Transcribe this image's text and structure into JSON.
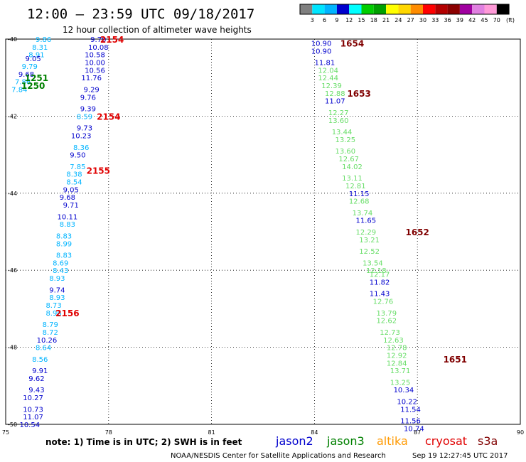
{
  "header": {
    "title": "12:00 – 23:59 UTC 09/18/2017",
    "subtitle": "12 hour collection of altimeter wave heights"
  },
  "colorbar": {
    "colors": [
      "#808080",
      "#00e5ff",
      "#00b4ff",
      "#0000cd",
      "#00ffff",
      "#00cd00",
      "#00a000",
      "#ffff00",
      "#ffd700",
      "#ff8c00",
      "#ff0000",
      "#b40000",
      "#8b0000",
      "#a000a0",
      "#e080e0",
      "#ff9ad8",
      "#000000"
    ],
    "labels": [
      "3",
      "6",
      "9",
      "12",
      "15",
      "18",
      "21",
      "24",
      "27",
      "30",
      "33",
      "36",
      "39",
      "42",
      "45",
      "70"
    ],
    "unit": "(ft)"
  },
  "footer": {
    "note": "note:  1) Time is in UTC;  2) SWH is in feet",
    "credit": "NOAA/NESDIS Center for Satellite Applications and Research",
    "timestamp": "Sep 19 12:27:45 UTC 2017"
  },
  "legend": [
    {
      "name": "jason2",
      "color": "#0000cd"
    },
    {
      "name": "jason3",
      "color": "#008000"
    },
    {
      "name": "altika",
      "color": "#ff9900"
    },
    {
      "name": "cryosat",
      "color": "#e00000"
    },
    {
      "name": "s3a",
      "color": "#800000"
    }
  ],
  "chart_data": {
    "type": "scatter",
    "xlim": [
      75,
      90
    ],
    "ylim": [
      -50,
      -40
    ],
    "xticks": [
      75,
      78,
      81,
      84,
      87,
      90
    ],
    "yticks": [
      -40,
      -42,
      -44,
      -46,
      -48,
      -50
    ],
    "grid": true,
    "colors": {
      "jason2": "#0000cd",
      "jason3": "#008000",
      "cryosat": "#e00000",
      "s3a": "#800000",
      "c12": "#0000cd",
      "c9": "#00b4ff",
      "c6": "#00e5ff",
      "c15": "#66dd66"
    },
    "time_labels": [
      {
        "text": "2154",
        "x": 78.1,
        "y": -40.0,
        "sat": "cryosat"
      },
      {
        "text": "2154",
        "x": 78.0,
        "y": -42.0,
        "sat": "cryosat"
      },
      {
        "text": "2155",
        "x": 77.7,
        "y": -43.4,
        "sat": "cryosat"
      },
      {
        "text": "2156",
        "x": 76.8,
        "y": -47.1,
        "sat": "cryosat"
      },
      {
        "text": "1251",
        "x": 75.9,
        "y": -41.0,
        "sat": "jason3"
      },
      {
        "text": "1250",
        "x": 75.8,
        "y": -41.2,
        "sat": "jason3"
      },
      {
        "text": "1654",
        "x": 85.1,
        "y": -40.1,
        "sat": "s3a"
      },
      {
        "text": "1653",
        "x": 85.3,
        "y": -41.4,
        "sat": "s3a"
      },
      {
        "text": "1652",
        "x": 87.0,
        "y": -45.0,
        "sat": "s3a"
      },
      {
        "text": "1651",
        "x": 88.1,
        "y": -48.3,
        "sat": "s3a"
      }
    ],
    "points": [
      {
        "x": 76.1,
        "y": -40.0,
        "v": "9.86",
        "c": "c9"
      },
      {
        "x": 77.7,
        "y": -40.0,
        "v": "9.70",
        "c": "c12"
      },
      {
        "x": 76.0,
        "y": -40.2,
        "v": "8.31",
        "c": "c9"
      },
      {
        "x": 77.7,
        "y": -40.2,
        "v": "10.08",
        "c": "c12"
      },
      {
        "x": 75.9,
        "y": -40.4,
        "v": "8.91",
        "c": "c9"
      },
      {
        "x": 77.6,
        "y": -40.4,
        "v": "10.58",
        "c": "c12"
      },
      {
        "x": 75.8,
        "y": -40.5,
        "v": "9.05",
        "c": "c12"
      },
      {
        "x": 77.6,
        "y": -40.6,
        "v": "10.00",
        "c": "c12"
      },
      {
        "x": 75.7,
        "y": -40.7,
        "v": "9.79",
        "c": "c9"
      },
      {
        "x": 75.6,
        "y": -40.9,
        "v": "9.68",
        "c": "c12"
      },
      {
        "x": 77.6,
        "y": -40.8,
        "v": "10.56",
        "c": "c12"
      },
      {
        "x": 75.5,
        "y": -41.1,
        "v": "7.86",
        "c": "c9"
      },
      {
        "x": 77.5,
        "y": -41.0,
        "v": "11.76",
        "c": "c12"
      },
      {
        "x": 75.4,
        "y": -41.3,
        "v": "7.84",
        "c": "c9"
      },
      {
        "x": 77.5,
        "y": -41.3,
        "v": "9.29",
        "c": "c12"
      },
      {
        "x": 77.4,
        "y": -41.5,
        "v": "9.76",
        "c": "c12"
      },
      {
        "x": 77.4,
        "y": -41.8,
        "v": "9.39",
        "c": "c12"
      },
      {
        "x": 77.3,
        "y": -42.0,
        "v": "8.59",
        "c": "c9"
      },
      {
        "x": 77.3,
        "y": -42.3,
        "v": "9.73",
        "c": "c12"
      },
      {
        "x": 77.2,
        "y": -42.5,
        "v": "10.23",
        "c": "c12"
      },
      {
        "x": 77.2,
        "y": -42.8,
        "v": "8.36",
        "c": "c9"
      },
      {
        "x": 77.1,
        "y": -43.0,
        "v": "9.50",
        "c": "c12"
      },
      {
        "x": 77.1,
        "y": -43.3,
        "v": "7.85",
        "c": "c9"
      },
      {
        "x": 77.0,
        "y": -43.5,
        "v": "8.38",
        "c": "c9"
      },
      {
        "x": 77.0,
        "y": -43.7,
        "v": "8.54",
        "c": "c9"
      },
      {
        "x": 76.9,
        "y": -43.9,
        "v": "9.05",
        "c": "c12"
      },
      {
        "x": 76.8,
        "y": -44.1,
        "v": "9.68",
        "c": "c12"
      },
      {
        "x": 76.9,
        "y": -44.3,
        "v": "9.71",
        "c": "c12"
      },
      {
        "x": 76.8,
        "y": -44.6,
        "v": "10.11",
        "c": "c12"
      },
      {
        "x": 76.8,
        "y": -44.8,
        "v": "8.83",
        "c": "c9"
      },
      {
        "x": 76.7,
        "y": -45.1,
        "v": "8.83",
        "c": "c9"
      },
      {
        "x": 76.7,
        "y": -45.3,
        "v": "8.99",
        "c": "c9"
      },
      {
        "x": 76.7,
        "y": -45.6,
        "v": "8.83",
        "c": "c9"
      },
      {
        "x": 76.6,
        "y": -45.8,
        "v": "8.69",
        "c": "c9"
      },
      {
        "x": 76.6,
        "y": -46.0,
        "v": "8.43",
        "c": "c9"
      },
      {
        "x": 76.5,
        "y": -46.2,
        "v": "8.93",
        "c": "c9"
      },
      {
        "x": 76.5,
        "y": -46.5,
        "v": "9.74",
        "c": "c12"
      },
      {
        "x": 76.5,
        "y": -46.7,
        "v": "8.93",
        "c": "c9"
      },
      {
        "x": 76.4,
        "y": -46.9,
        "v": "8.73",
        "c": "c9"
      },
      {
        "x": 76.4,
        "y": -47.1,
        "v": "8.96",
        "c": "c9"
      },
      {
        "x": 76.3,
        "y": -47.4,
        "v": "8.79",
        "c": "c9"
      },
      {
        "x": 76.3,
        "y": -47.6,
        "v": "8.72",
        "c": "c9"
      },
      {
        "x": 76.2,
        "y": -47.8,
        "v": "10.26",
        "c": "c12"
      },
      {
        "x": 76.1,
        "y": -48.0,
        "v": "8.64",
        "c": "c9"
      },
      {
        "x": 76.0,
        "y": -48.3,
        "v": "8.56",
        "c": "c9"
      },
      {
        "x": 76.0,
        "y": -48.6,
        "v": "9.91",
        "c": "c12"
      },
      {
        "x": 75.9,
        "y": -48.8,
        "v": "9.62",
        "c": "c12"
      },
      {
        "x": 75.9,
        "y": -49.1,
        "v": "9.43",
        "c": "c12"
      },
      {
        "x": 75.8,
        "y": -49.3,
        "v": "10.27",
        "c": "c12"
      },
      {
        "x": 75.8,
        "y": -49.6,
        "v": "10.73",
        "c": "c12"
      },
      {
        "x": 75.8,
        "y": -49.8,
        "v": "11.07",
        "c": "c12"
      },
      {
        "x": 75.7,
        "y": -50.0,
        "v": "10.54",
        "c": "c12"
      },
      {
        "x": 84.2,
        "y": -40.1,
        "v": "10.90",
        "c": "c12"
      },
      {
        "x": 84.2,
        "y": -40.3,
        "v": "10.90",
        "c": "c12"
      },
      {
        "x": 84.3,
        "y": -40.6,
        "v": "11.81",
        "c": "c12"
      },
      {
        "x": 84.4,
        "y": -40.8,
        "v": "12.04",
        "c": "c15"
      },
      {
        "x": 84.4,
        "y": -41.0,
        "v": "12.44",
        "c": "c15"
      },
      {
        "x": 84.5,
        "y": -41.2,
        "v": "12.39",
        "c": "c15"
      },
      {
        "x": 84.6,
        "y": -41.4,
        "v": "12.88",
        "c": "c15"
      },
      {
        "x": 84.6,
        "y": -41.6,
        "v": "11.07",
        "c": "c12"
      },
      {
        "x": 84.7,
        "y": -41.9,
        "v": "12.27",
        "c": "c15"
      },
      {
        "x": 84.7,
        "y": -42.1,
        "v": "13.60",
        "c": "c15"
      },
      {
        "x": 84.8,
        "y": -42.4,
        "v": "13.44",
        "c": "c15"
      },
      {
        "x": 84.9,
        "y": -42.6,
        "v": "13.25",
        "c": "c15"
      },
      {
        "x": 84.9,
        "y": -42.9,
        "v": "13.60",
        "c": "c15"
      },
      {
        "x": 85.0,
        "y": -43.1,
        "v": "12.67",
        "c": "c15"
      },
      {
        "x": 85.1,
        "y": -43.3,
        "v": "14.02",
        "c": "c15"
      },
      {
        "x": 85.1,
        "y": -43.6,
        "v": "13.11",
        "c": "c15"
      },
      {
        "x": 85.2,
        "y": -43.8,
        "v": "12.81",
        "c": "c15"
      },
      {
        "x": 85.3,
        "y": -44.0,
        "v": "11.15",
        "c": "c12"
      },
      {
        "x": 85.3,
        "y": -44.2,
        "v": "12.68",
        "c": "c15"
      },
      {
        "x": 85.4,
        "y": -44.5,
        "v": "13.74",
        "c": "c15"
      },
      {
        "x": 85.5,
        "y": -44.7,
        "v": "11.65",
        "c": "c12"
      },
      {
        "x": 85.5,
        "y": -45.0,
        "v": "12.29",
        "c": "c15"
      },
      {
        "x": 85.6,
        "y": -45.2,
        "v": "13.21",
        "c": "c15"
      },
      {
        "x": 85.6,
        "y": -45.5,
        "v": "12.52",
        "c": "c15"
      },
      {
        "x": 85.7,
        "y": -45.8,
        "v": "13.54",
        "c": "c15"
      },
      {
        "x": 85.8,
        "y": -46.0,
        "v": "12.18",
        "c": "c15"
      },
      {
        "x": 85.9,
        "y": -46.1,
        "v": "12.17",
        "c": "c15"
      },
      {
        "x": 85.9,
        "y": -46.3,
        "v": "11.82",
        "c": "c12"
      },
      {
        "x": 85.9,
        "y": -46.6,
        "v": "11.43",
        "c": "c12"
      },
      {
        "x": 86.0,
        "y": -46.8,
        "v": "12.76",
        "c": "c15"
      },
      {
        "x": 86.1,
        "y": -47.1,
        "v": "13.79",
        "c": "c15"
      },
      {
        "x": 86.1,
        "y": -47.3,
        "v": "12.62",
        "c": "c15"
      },
      {
        "x": 86.2,
        "y": -47.6,
        "v": "12.73",
        "c": "c15"
      },
      {
        "x": 86.3,
        "y": -47.8,
        "v": "12.63",
        "c": "c15"
      },
      {
        "x": 86.4,
        "y": -48.0,
        "v": "12.78",
        "c": "c15"
      },
      {
        "x": 86.4,
        "y": -48.2,
        "v": "12.92",
        "c": "c15"
      },
      {
        "x": 86.4,
        "y": -48.4,
        "v": "12.84",
        "c": "c15"
      },
      {
        "x": 86.5,
        "y": -48.6,
        "v": "13.71",
        "c": "c15"
      },
      {
        "x": 86.5,
        "y": -48.9,
        "v": "13.25",
        "c": "c15"
      },
      {
        "x": 86.6,
        "y": -49.1,
        "v": "10.34",
        "c": "c12"
      },
      {
        "x": 86.7,
        "y": -49.4,
        "v": "10.22",
        "c": "c12"
      },
      {
        "x": 86.8,
        "y": -49.6,
        "v": "11.54",
        "c": "c12"
      },
      {
        "x": 86.8,
        "y": -49.9,
        "v": "11.56",
        "c": "c12"
      },
      {
        "x": 86.9,
        "y": -50.1,
        "v": "10.74",
        "c": "c12"
      }
    ]
  }
}
